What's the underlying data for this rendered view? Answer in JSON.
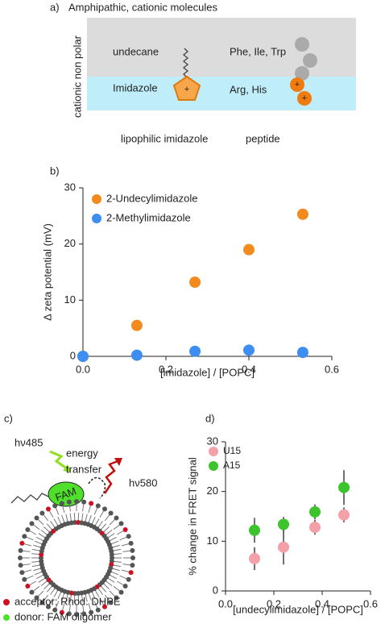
{
  "panel_a": {
    "label": "a)",
    "title": "Amphipathic, cationic molecules",
    "side_label": "cationic non polar",
    "undecane": "undecane",
    "imidazole": "Imidazole",
    "plus_imidazole": "+",
    "aromatic": "Phe, Ile, Trp",
    "cationic": "Arg, His",
    "plus_arg": "+",
    "plus_his": "+",
    "caption_left": "lipophilic imidazole",
    "caption_right": "peptide"
  },
  "panel_c": {
    "label": "c)",
    "hv_in": "hν485",
    "energy": "energy",
    "transfer": "transfer",
    "fam": "FAM",
    "hv_out": "hν580",
    "acceptor": "acceptor: Rhod. DHPE",
    "donor": "donor:  FAM oligomer"
  },
  "chart_data": [
    {
      "type": "scatter",
      "panel_label": "b)",
      "x_label": "[imidazole] / [POPC]",
      "y_label": "Δ zeta potential (mV)",
      "x": [
        0,
        0.13,
        0.27,
        0.4,
        0.53
      ],
      "series": [
        {
          "name": "2-Undecylimidazole",
          "color": "#f28a1e",
          "values": [
            0,
            5.5,
            13.2,
            19,
            25.3
          ]
        },
        {
          "name": "2-Methylimidazole",
          "color": "#3d8ef0",
          "values": [
            0,
            0.2,
            0.9,
            1.1,
            0.7
          ]
        }
      ],
      "xlim": [
        0,
        0.6
      ],
      "xticks": [
        {
          "value": 0,
          "label": "0.0"
        },
        0.2,
        0.4,
        0.6
      ],
      "ylim": [
        0,
        30
      ],
      "yticks": [
        0,
        10,
        20,
        30
      ],
      "legend": "top-left"
    },
    {
      "type": "errorbar",
      "panel_label": "d)",
      "x_label": "[undecylimidazole] / [POPC]",
      "y_label": "% change in FRET signal",
      "x": [
        0.12,
        0.24,
        0.37,
        0.49
      ],
      "series": [
        {
          "name": "U15",
          "color": "#f4a0a8",
          "values": [
            6.5,
            8.8,
            12.8,
            15.3
          ],
          "errors": [
            2.3,
            3.5,
            1.5,
            1.5
          ]
        },
        {
          "name": "A15",
          "color": "#3cc42c",
          "values": [
            12.2,
            13.4,
            15.9,
            20.8
          ],
          "errors": [
            2.5,
            1.5,
            1.5,
            3.5
          ]
        }
      ],
      "xlim": [
        0,
        0.6
      ],
      "xticks": [
        {
          "value": 0,
          "label": "0.0"
        },
        0.2,
        0.4,
        0.6
      ],
      "ylim": [
        0,
        30
      ],
      "yticks": [
        0,
        10,
        20,
        30
      ],
      "legend": "top-left"
    }
  ]
}
